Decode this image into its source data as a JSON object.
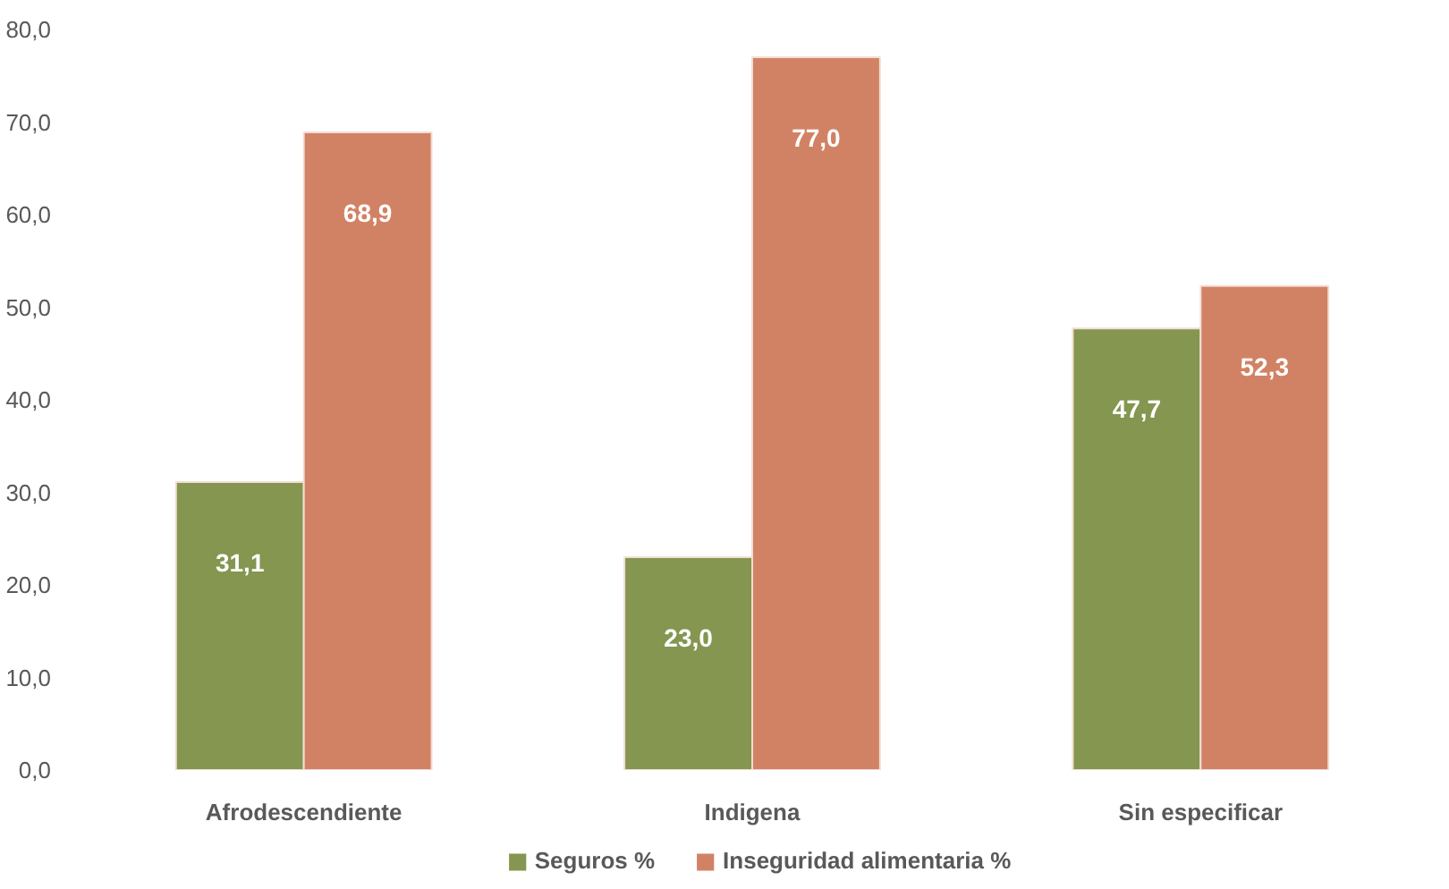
{
  "chart_data": {
    "type": "bar",
    "categories": [
      "Afrodescendiente",
      "Indigena",
      "Sin especificar"
    ],
    "series": [
      {
        "name": "Seguros %",
        "color": "#84964f",
        "values": [
          31.1,
          23.0,
          47.7
        ],
        "value_labels": [
          "31,1",
          "23,0",
          "47,7"
        ]
      },
      {
        "name": "Inseguridad alimentaria %",
        "color": "#d28264",
        "values": [
          68.9,
          77.0,
          52.3
        ],
        "value_labels": [
          "68,9",
          "77,0",
          "52,3"
        ]
      }
    ],
    "ylim": [
      0,
      80
    ],
    "yticks": [
      {
        "value": 0,
        "label": "0,0"
      },
      {
        "value": 10,
        "label": "10,0"
      },
      {
        "value": 20,
        "label": "20,0"
      },
      {
        "value": 30,
        "label": "30,0"
      },
      {
        "value": 40,
        "label": "40,0"
      },
      {
        "value": 50,
        "label": "50,0"
      },
      {
        "value": 60,
        "label": "60,0"
      },
      {
        "value": 70,
        "label": "70,0"
      },
      {
        "value": 80,
        "label": "80,0"
      }
    ],
    "grid": false,
    "legend": "bottom"
  }
}
